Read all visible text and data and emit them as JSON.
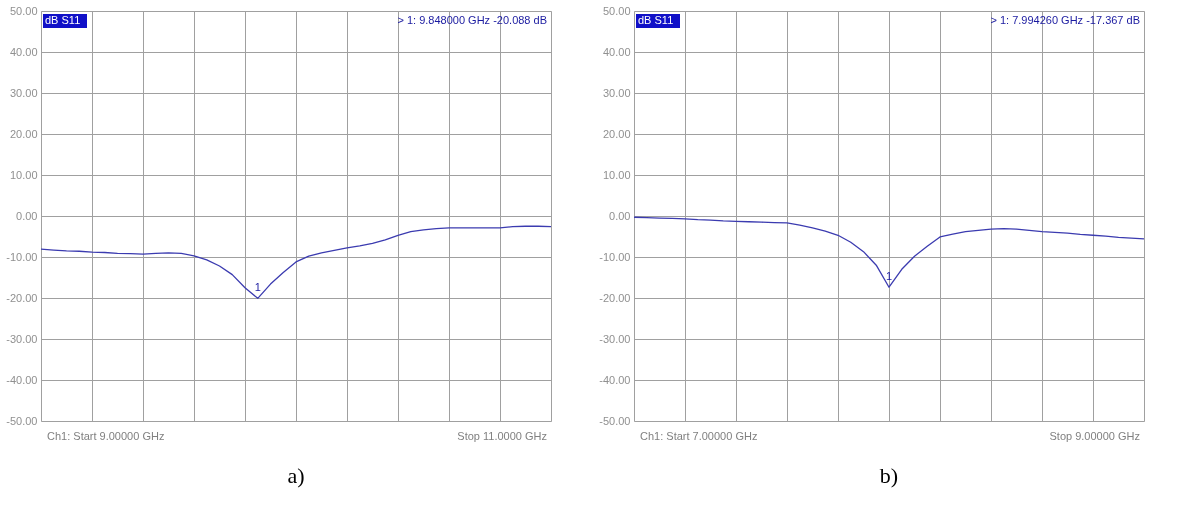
{
  "chart_data": [
    {
      "type": "line",
      "title": "a)",
      "tick_labels": "y",
      "grid": true,
      "categories": [
        null,
        null,
        null,
        null,
        null,
        null,
        null,
        null,
        null,
        null,
        null,
        null,
        null,
        null,
        null,
        null,
        null,
        null,
        null,
        null,
        null,
        null,
        null,
        null,
        null,
        null,
        null,
        null,
        null,
        null,
        null,
        null,
        null,
        null,
        null,
        null,
        null,
        null,
        null,
        null,
        null
      ],
      "ylim": [
        -50,
        50
      ],
      "yticks": [
        {
          "value": 50,
          "label": "50.00"
        },
        {
          "value": 40,
          "label": "40.00"
        },
        {
          "value": 30,
          "label": "30.00"
        },
        {
          "value": 20,
          "label": "20.00"
        },
        {
          "value": 10,
          "label": "10.00"
        },
        {
          "value": 0,
          "label": "0.00"
        },
        {
          "value": -10,
          "label": "-10.00"
        },
        {
          "value": -20,
          "label": "-20.00"
        },
        {
          "value": -30,
          "label": "-30.00"
        },
        {
          "value": -40,
          "label": "-40.00"
        },
        {
          "value": -50,
          "label": "-50.00"
        }
      ],
      "annotations": [
        "dB S11",
        "> 1:   9.848000 GHz   -20.088 dB",
        "Ch1: Start  9.00000 GHz",
        "Stop  11.0000 GHz",
        "1"
      ],
      "series": [
        {
          "color": "#3b3bb0",
          "values": [
            -8.1,
            -8.3,
            -8.5,
            -8.6,
            -8.8,
            -8.9,
            -9.1,
            -9.2,
            -9.3,
            -9.1,
            -9.0,
            -9.1,
            -9.7,
            -10.7,
            -12.2,
            -14.3,
            -17.5,
            -20.088,
            -16.6,
            -13.8,
            -11.2,
            -9.8,
            -9.0,
            -8.4,
            -7.8,
            -7.3,
            -6.7,
            -5.8,
            -4.7,
            -3.8,
            -3.4,
            -3.1,
            -2.9,
            -2.9,
            -2.9,
            -2.9,
            -2.9,
            -2.6,
            -2.5,
            -2.5,
            -2.6
          ]
        }
      ]
    },
    {
      "type": "line",
      "title": "b)",
      "tick_labels": "y",
      "grid": true,
      "categories": [
        null,
        null,
        null,
        null,
        null,
        null,
        null,
        null,
        null,
        null,
        null,
        null,
        null,
        null,
        null,
        null,
        null,
        null,
        null,
        null,
        null,
        null,
        null,
        null,
        null,
        null,
        null,
        null,
        null,
        null,
        null,
        null,
        null,
        null,
        null,
        null,
        null,
        null,
        null,
        null,
        null
      ],
      "ylim": [
        -50,
        50
      ],
      "yticks": [
        {
          "value": 50,
          "label": "50.00"
        },
        {
          "value": 40,
          "label": "40.00"
        },
        {
          "value": 30,
          "label": "30.00"
        },
        {
          "value": 20,
          "label": "20.00"
        },
        {
          "value": 10,
          "label": "10.00"
        },
        {
          "value": 0,
          "label": "0.00"
        },
        {
          "value": -10,
          "label": "-10.00"
        },
        {
          "value": -20,
          "label": "-20.00"
        },
        {
          "value": -30,
          "label": "-30.00"
        },
        {
          "value": -40,
          "label": "-40.00"
        },
        {
          "value": -50,
          "label": "-50.00"
        }
      ],
      "annotations": [
        "dB S11",
        "> 1:   7.994260 GHz   -17.367 dB",
        "Ch1: Start  7.00000 GHz",
        "Stop  9.00000 GHz",
        "1"
      ],
      "series": [
        {
          "color": "#3b3bb0",
          "values": [
            -0.3,
            -0.4,
            -0.5,
            -0.6,
            -0.7,
            -0.9,
            -1.0,
            -1.2,
            -1.3,
            -1.4,
            -1.5,
            -1.6,
            -1.7,
            -2.2,
            -2.9,
            -3.7,
            -4.7,
            -6.4,
            -8.7,
            -12.0,
            -17.367,
            -13.0,
            -9.8,
            -7.4,
            -5.1,
            -4.4,
            -3.8,
            -3.5,
            -3.2,
            -3.1,
            -3.2,
            -3.5,
            -3.8,
            -4.0,
            -4.2,
            -4.5,
            -4.7,
            -4.9,
            -5.2,
            -5.4,
            -5.6
          ]
        }
      ]
    }
  ]
}
